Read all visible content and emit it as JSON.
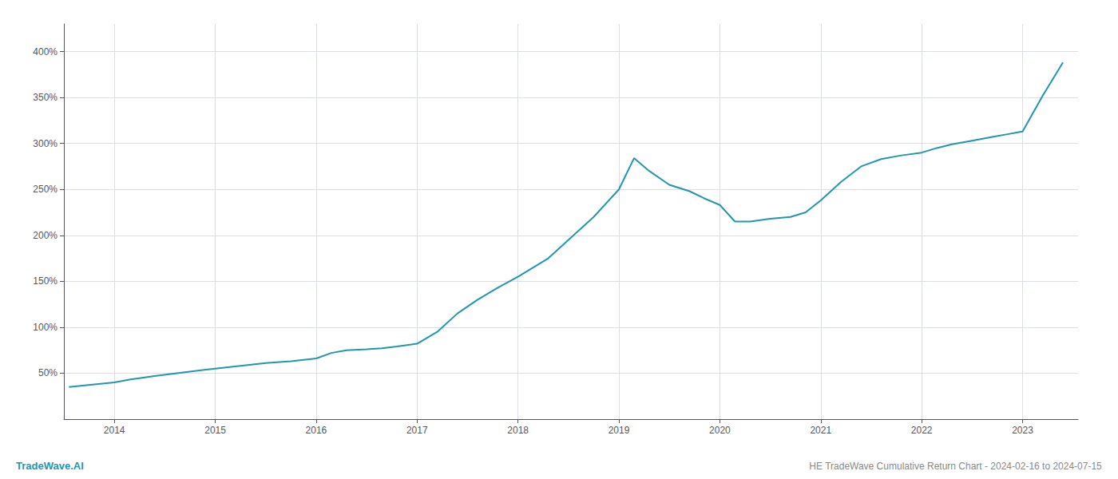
{
  "chart_data": {
    "type": "line",
    "x": [
      2013.55,
      2014.0,
      2014.15,
      2014.4,
      2014.7,
      2015.0,
      2015.25,
      2015.5,
      2015.75,
      2016.0,
      2016.15,
      2016.3,
      2016.5,
      2016.65,
      2016.8,
      2017.0,
      2017.2,
      2017.4,
      2017.6,
      2017.8,
      2018.0,
      2018.15,
      2018.3,
      2018.5,
      2018.75,
      2019.0,
      2019.15,
      2019.3,
      2019.5,
      2019.7,
      2019.85,
      2020.0,
      2020.15,
      2020.3,
      2020.5,
      2020.7,
      2020.85,
      2021.0,
      2021.2,
      2021.4,
      2021.6,
      2021.8,
      2022.0,
      2022.15,
      2022.3,
      2022.5,
      2022.7,
      2022.85,
      2023.0,
      2023.2,
      2023.4
    ],
    "values": [
      35,
      40,
      43,
      47,
      51,
      55,
      58,
      61,
      63,
      66,
      72,
      75,
      76,
      77,
      79,
      82,
      95,
      115,
      130,
      143,
      155,
      165,
      175,
      195,
      220,
      250,
      284,
      270,
      255,
      248,
      240,
      233,
      215,
      215,
      218,
      220,
      225,
      238,
      258,
      275,
      283,
      287,
      290,
      295,
      299,
      303,
      307,
      310,
      313,
      352,
      388
    ],
    "color": "#2196b0",
    "xlim": [
      2013.5,
      2023.55
    ],
    "ylim": [
      0,
      430
    ],
    "xticks": [
      2014,
      2015,
      2016,
      2017,
      2018,
      2019,
      2020,
      2021,
      2022,
      2023
    ],
    "yticks": [
      {
        "value": 50,
        "label": "50%"
      },
      {
        "value": 100,
        "label": "100%"
      },
      {
        "value": 150,
        "label": "150%"
      },
      {
        "value": 200,
        "label": "200%"
      },
      {
        "value": 250,
        "label": "250%"
      },
      {
        "value": 300,
        "label": "300%"
      },
      {
        "value": 350,
        "label": "350%"
      },
      {
        "value": 400,
        "label": "400%"
      }
    ],
    "grid": true,
    "annotations": [
      {
        "text": "TradeWave.AI",
        "color": "#2196b0"
      },
      {
        "text": "HE TradeWave Cumulative Return Chart - 2024-02-16 to 2024-07-15"
      }
    ]
  }
}
